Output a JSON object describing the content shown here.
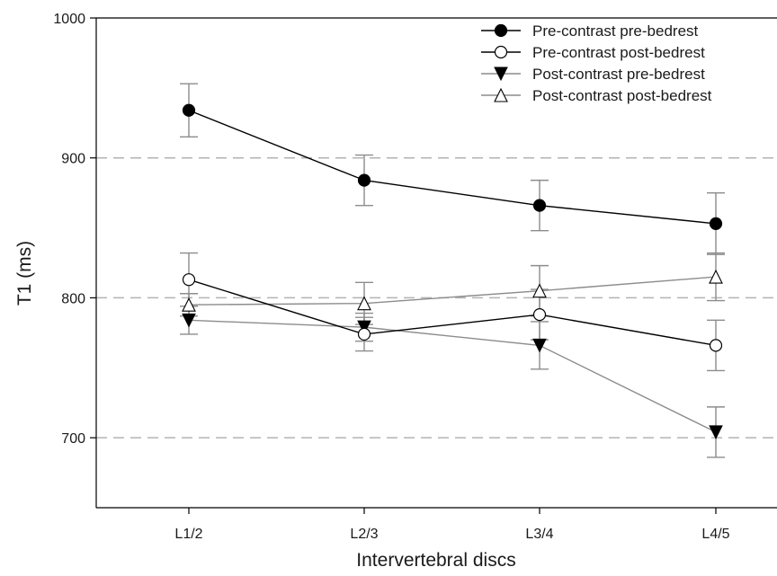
{
  "chart_data": {
    "type": "line",
    "title": "",
    "xlabel": "Intervertebral discs",
    "ylabel": "T1 (ms)",
    "categories": [
      "L1/2",
      "L2/3",
      "L3/4",
      "L4/5"
    ],
    "ylim": [
      650,
      1000
    ],
    "yticks": [
      700,
      800,
      900,
      1000
    ],
    "grid": "horizontal dashed at 700, 800, 900",
    "legend_position": "top-right",
    "series": [
      {
        "name": "Pre-contrast pre-bedrest",
        "marker": "filled-circle",
        "line_color": "#000000",
        "values": [
          934,
          884,
          866,
          853
        ],
        "error": [
          19,
          18,
          18,
          22
        ]
      },
      {
        "name": "Pre-contrast post-bedrest",
        "marker": "open-circle",
        "line_color": "#000000",
        "values": [
          813,
          774,
          788,
          766
        ],
        "error": [
          19,
          12,
          18,
          18
        ]
      },
      {
        "name": "Post-contrast pre-bedrest",
        "marker": "filled-triangle-down",
        "line_color": "#8c8c8c",
        "values": [
          784,
          779,
          766,
          704
        ],
        "error": [
          10,
          10,
          17,
          18
        ]
      },
      {
        "name": "Post-contrast post-bedrest",
        "marker": "open-triangle-up",
        "line_color": "#8c8c8c",
        "values": [
          795,
          796,
          805,
          815
        ],
        "error": [
          8,
          15,
          18,
          17
        ]
      }
    ]
  }
}
